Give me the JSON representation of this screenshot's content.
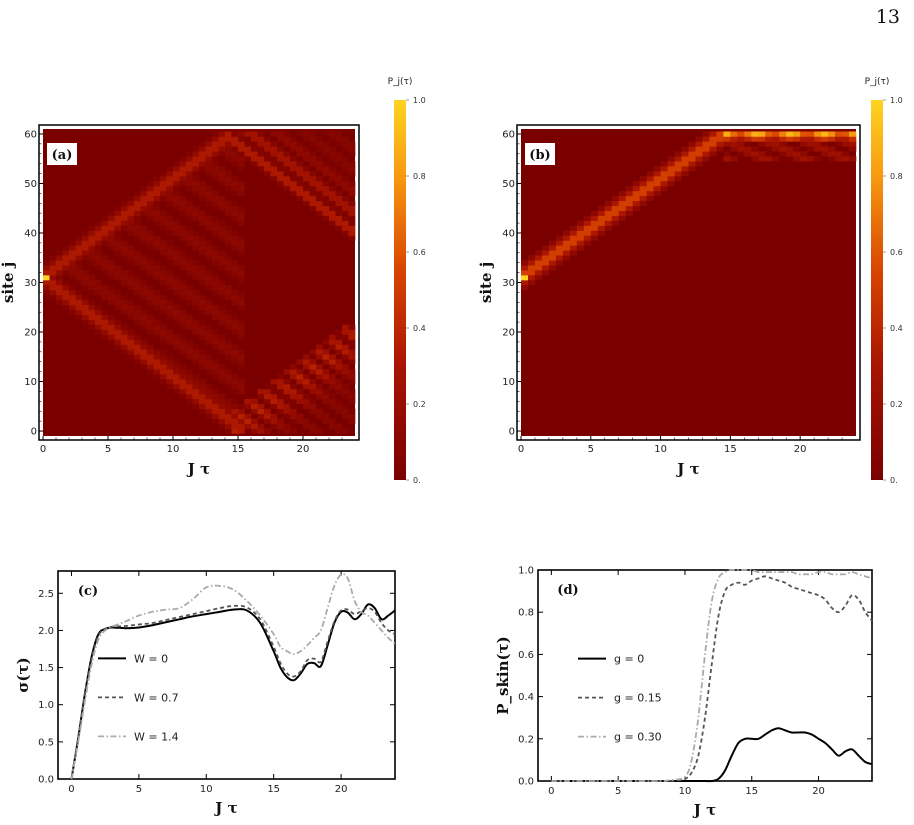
{
  "page_number": "13",
  "colors": {
    "heat_low": "#7a0000",
    "heat_high": "#ffd21e",
    "black": "#000000",
    "gray_dark": "#555555",
    "gray_light": "#aaaaaa"
  },
  "chart_data": [
    {
      "panel": "(a)",
      "type": "heatmap",
      "xlabel": "J τ",
      "ylabel": "site j",
      "xlim": [
        0,
        24
      ],
      "ylim": [
        0,
        60
      ],
      "xticks": [
        "0",
        "5",
        "10",
        "15",
        "20"
      ],
      "yticks": [
        "0",
        "10",
        "20",
        "30",
        "40",
        "50",
        "60"
      ],
      "colorbar": {
        "title": "P_j(τ)",
        "ticks": [
          "0.",
          "0.2",
          "0.4",
          "0.6",
          "0.8",
          "1.0"
        ],
        "range": [
          0,
          1
        ]
      },
      "pattern": "symmetric light-cone spreading from site 31 toward both edges, velocity ~2 sites per J τ, interference fringes inside cone",
      "initial_site": 31
    },
    {
      "panel": "(b)",
      "type": "heatmap",
      "xlabel": "J τ",
      "ylabel": "site j",
      "xlim": [
        0,
        24
      ],
      "ylim": [
        0,
        60
      ],
      "xticks": [
        "0",
        "5",
        "10",
        "15",
        "20"
      ],
      "yticks": [
        "0",
        "10",
        "20",
        "30",
        "40",
        "50",
        "60"
      ],
      "colorbar": {
        "title": "P_j(τ)",
        "ticks": [
          "0.",
          "0.2",
          "0.4",
          "0.6",
          "0.8",
          "1.0"
        ],
        "range": [
          0,
          1
        ]
      },
      "pattern": "unidirectional propagation from site 31 toward upper edge, accumulating at site 60 after J τ ~15",
      "initial_site": 31
    },
    {
      "panel": "(c)",
      "type": "line",
      "xlabel": "J τ",
      "ylabel": "σ(τ)",
      "xlim": [
        -1,
        24
      ],
      "ylim": [
        0,
        2.8
      ],
      "xticks": [
        "0",
        "5",
        "10",
        "15",
        "20"
      ],
      "yticks": [
        "0.0",
        "0.5",
        "1.0",
        "1.5",
        "2.0",
        "2.5"
      ],
      "x": [
        0,
        0.5,
        1,
        1.5,
        2,
        2.5,
        3,
        4,
        5,
        6,
        7,
        8,
        9,
        10,
        11,
        12,
        13,
        14,
        15,
        15.5,
        16,
        16.5,
        17,
        17.5,
        18,
        18.5,
        19,
        19.5,
        20,
        20.5,
        21,
        21.5,
        22,
        22.5,
        23,
        23.5,
        24
      ],
      "series": [
        {
          "name": "W = 0",
          "style": "solid",
          "color": "#000000",
          "values": [
            0,
            0.55,
            1.15,
            1.65,
            1.95,
            2.02,
            2.04,
            2.03,
            2.04,
            2.07,
            2.11,
            2.15,
            2.19,
            2.22,
            2.25,
            2.28,
            2.27,
            2.1,
            1.72,
            1.5,
            1.37,
            1.33,
            1.42,
            1.55,
            1.56,
            1.52,
            1.8,
            2.1,
            2.25,
            2.24,
            2.15,
            2.22,
            2.35,
            2.3,
            2.15,
            2.2,
            2.27
          ]
        },
        {
          "name": "W = 0.7",
          "style": "dashed",
          "color": "#555555",
          "values": [
            0,
            0.55,
            1.15,
            1.62,
            1.93,
            2.02,
            2.05,
            2.06,
            2.08,
            2.1,
            2.14,
            2.18,
            2.22,
            2.26,
            2.3,
            2.33,
            2.31,
            2.15,
            1.78,
            1.56,
            1.42,
            1.38,
            1.45,
            1.6,
            1.62,
            1.58,
            1.85,
            2.12,
            2.27,
            2.28,
            2.22,
            2.26,
            2.3,
            2.25,
            2.1,
            2.0,
            1.95
          ]
        },
        {
          "name": "W = 1.4",
          "style": "dashdot",
          "color": "#aaaaaa",
          "values": [
            0,
            0.5,
            1.05,
            1.55,
            1.88,
            2.0,
            2.05,
            2.12,
            2.2,
            2.25,
            2.28,
            2.3,
            2.42,
            2.58,
            2.6,
            2.55,
            2.4,
            2.2,
            1.95,
            1.78,
            1.72,
            1.68,
            1.72,
            1.8,
            1.9,
            2.0,
            2.3,
            2.6,
            2.75,
            2.7,
            2.4,
            2.25,
            2.2,
            2.1,
            2.0,
            1.9,
            1.82
          ]
        }
      ],
      "legend_placement": "left-middle"
    },
    {
      "panel": "(d)",
      "type": "line",
      "xlabel": "J τ",
      "ylabel": "P_skin(τ)",
      "xlim": [
        -1,
        24
      ],
      "ylim": [
        0,
        1.0
      ],
      "xticks": [
        "0",
        "5",
        "10",
        "15",
        "20"
      ],
      "yticks": [
        "0.0",
        "0.2",
        "0.4",
        "0.6",
        "0.8",
        "1.0"
      ],
      "x": [
        0,
        2,
        4,
        6,
        8,
        9,
        10,
        10.5,
        11,
        11.5,
        12,
        12.5,
        13,
        13.5,
        14,
        14.5,
        15,
        15.5,
        16,
        16.5,
        17,
        17.5,
        18,
        18.5,
        19,
        19.5,
        20,
        20.5,
        21,
        21.5,
        22,
        22.5,
        23,
        23.5,
        24
      ],
      "series": [
        {
          "name": "g = 0",
          "style": "solid",
          "color": "#000000",
          "values": [
            0,
            0,
            0,
            0,
            0,
            0,
            0,
            0,
            0,
            0,
            0,
            0.01,
            0.05,
            0.12,
            0.18,
            0.2,
            0.2,
            0.2,
            0.22,
            0.24,
            0.25,
            0.24,
            0.23,
            0.23,
            0.23,
            0.22,
            0.2,
            0.18,
            0.15,
            0.12,
            0.14,
            0.15,
            0.12,
            0.09,
            0.08
          ]
        },
        {
          "name": "g = 0.15",
          "style": "dashed",
          "color": "#555555",
          "values": [
            0,
            0,
            0,
            0,
            0,
            0,
            0.01,
            0.04,
            0.12,
            0.3,
            0.55,
            0.78,
            0.9,
            0.93,
            0.94,
            0.93,
            0.95,
            0.96,
            0.97,
            0.96,
            0.95,
            0.94,
            0.92,
            0.91,
            0.9,
            0.89,
            0.88,
            0.86,
            0.82,
            0.8,
            0.83,
            0.88,
            0.86,
            0.8,
            0.76
          ]
        },
        {
          "name": "g = 0.30",
          "style": "dashdot",
          "color": "#aaaaaa",
          "values": [
            0,
            0,
            0,
            0,
            0,
            0.005,
            0.02,
            0.1,
            0.3,
            0.6,
            0.85,
            0.96,
            0.99,
            1.0,
            1.0,
            1.0,
            1.0,
            0.99,
            0.99,
            0.99,
            0.99,
            0.99,
            0.99,
            0.98,
            0.98,
            0.98,
            0.99,
            0.99,
            0.98,
            0.98,
            0.98,
            0.99,
            0.98,
            0.97,
            0.96
          ]
        }
      ],
      "legend_placement": "left-middle"
    }
  ]
}
